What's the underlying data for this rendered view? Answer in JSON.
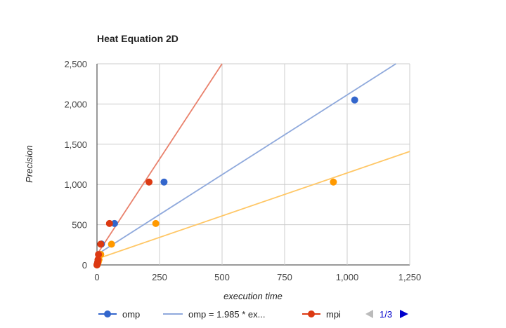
{
  "chart_data": {
    "type": "scatter",
    "title": "Heat Equation 2D",
    "xlabel": "execution time",
    "ylabel": "Precision",
    "xlim": [
      0,
      1250
    ],
    "ylim": [
      0,
      2500
    ],
    "x_ticks": [
      "0",
      "250",
      "500",
      "750",
      "1,000",
      "1,250"
    ],
    "y_ticks": [
      "0",
      "500",
      "1,000",
      "1,500",
      "2,000",
      "2,500"
    ],
    "x_tick_values": [
      0,
      250,
      500,
      750,
      1000,
      1250
    ],
    "y_tick_values": [
      0,
      500,
      1000,
      1500,
      2000,
      2500
    ],
    "grid": true,
    "legend_position": "bottom",
    "series": [
      {
        "name": "omp",
        "color": "#3366cc",
        "points": [
          [
            0,
            0
          ],
          [
            1,
            10
          ],
          [
            2,
            20
          ],
          [
            3,
            35
          ],
          [
            5,
            65
          ],
          [
            10,
            130
          ],
          [
            18,
            260
          ],
          [
            70,
            515
          ],
          [
            268,
            1030
          ],
          [
            1030,
            2050
          ]
        ]
      },
      {
        "name": "mpi",
        "color": "#dc3912",
        "points": [
          [
            0,
            0
          ],
          [
            1,
            10
          ],
          [
            2,
            20
          ],
          [
            3,
            35
          ],
          [
            4,
            65
          ],
          [
            6,
            130
          ],
          [
            15,
            258
          ],
          [
            50,
            515
          ],
          [
            208,
            1030
          ]
        ]
      },
      {
        "name": "",
        "color": "#ff9900",
        "points": [
          [
            0,
            0
          ],
          [
            2,
            10
          ],
          [
            3,
            20
          ],
          [
            5,
            35
          ],
          [
            8,
            65
          ],
          [
            15,
            130
          ],
          [
            58,
            258
          ],
          [
            235,
            515
          ],
          [
            945,
            1030
          ]
        ]
      }
    ],
    "trendlines": [
      {
        "series": "omp",
        "color": "#8fa9dc",
        "from": [
          0,
          130
        ],
        "to": [
          1195,
          2500
        ]
      },
      {
        "series": "mpi",
        "color": "#e9816c",
        "from": [
          0,
          130
        ],
        "to": [
          500,
          2500
        ]
      },
      {
        "series": "",
        "color": "#ffc766",
        "from": [
          0,
          75
        ],
        "to": [
          1250,
          1410
        ]
      }
    ]
  },
  "legend": [
    {
      "label": "omp",
      "kind": "point",
      "color": "#3366cc"
    },
    {
      "label": "omp = 1.985 * ex...",
      "kind": "line",
      "color": "#8fa9dc"
    },
    {
      "label": "mpi",
      "kind": "point",
      "color": "#dc3912"
    }
  ],
  "pager": {
    "label": "1/3"
  }
}
